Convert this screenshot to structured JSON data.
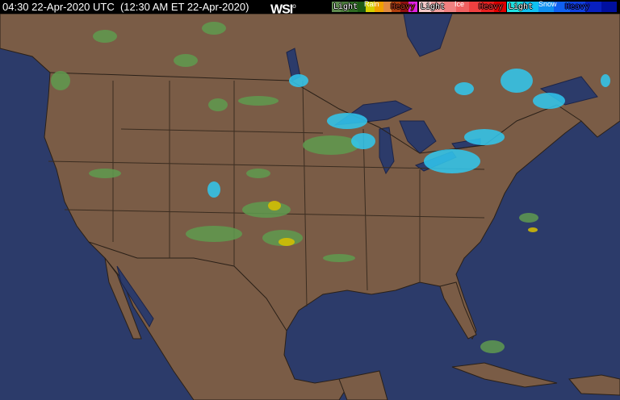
{
  "header": {
    "timestamp": "04:30 22-Apr-2020 UTC  (12:30 AM ET 22-Apr-2020)",
    "logo": "WSI"
  },
  "legend": {
    "rain": {
      "title": "Rain",
      "light": "Light",
      "heavy": "Heavy",
      "colors": [
        "#5f8a4f",
        "#4a7a3a",
        "#2e6a22",
        "#1c5a14",
        "#d4d000",
        "#f0a000",
        "#e08a40",
        "#b04010",
        "#901010",
        "#e020e0"
      ]
    },
    "ice": {
      "title": "Ice",
      "light": "Light",
      "heavy": "Heavy",
      "colors": [
        "#f4c8c8",
        "#f0a0a0",
        "#f08080",
        "#f06060",
        "#f04040",
        "#e82020",
        "#e00000"
      ]
    },
    "snow": {
      "title": "Snow",
      "light": "Light",
      "heavy": "Heavy",
      "colors": [
        "#20e0e0",
        "#10c0f0",
        "#1090f0",
        "#1060f0",
        "#1040e0",
        "#0820c0",
        "#0010a0"
      ]
    }
  },
  "map_colors": {
    "ocean": "#2c3b6a",
    "land": "#7a5c46",
    "border": "#2a2018",
    "lake": "#2c3b6a"
  }
}
